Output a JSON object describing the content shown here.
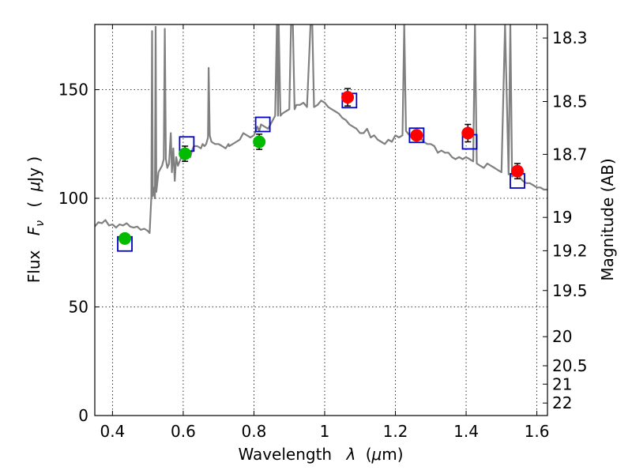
{
  "chart_data": {
    "type": "scatter",
    "xlabel_text": "Wavelength",
    "xlabel_symbol": "λ",
    "xlabel_unit_open": "(",
    "xlabel_unit_mu": "μ",
    "xlabel_unit_close": "m)",
    "ylabel_text": "Flux",
    "ylabel_symbol": "F",
    "ylabel_subscript": "ν",
    "ylabel_unit_open": "(",
    "ylabel_unit_mu": "μ",
    "ylabel_unit_close": "Jy )",
    "y2label": "Magnitude (AB)",
    "xlim": [
      0.35,
      1.63
    ],
    "ylim": [
      0,
      180
    ],
    "xticks": [
      0.4,
      0.6,
      0.8,
      1.0,
      1.2,
      1.4,
      1.6
    ],
    "xtick_labels": [
      "0.4",
      "0.6",
      "0.8",
      "1",
      "1.2",
      "1.4",
      "1.6"
    ],
    "yticks": [
      0,
      50,
      100,
      150
    ],
    "ytick_labels": [
      "0",
      "50",
      "100",
      "150"
    ],
    "y2ticks": [
      18.3,
      18.5,
      18.7,
      19,
      19.2,
      19.5,
      20,
      20.5,
      21,
      22
    ],
    "y2tick_labels": [
      "18.3",
      "18.5",
      "18.7",
      "19",
      "19.2",
      "19.5",
      "20",
      "20.5",
      "21",
      "22"
    ],
    "grid": true,
    "colors": {
      "green_points": "#00bb00",
      "red_points": "#ff0000",
      "model_squares": "#0000cc",
      "sed_line": "#808080",
      "error_bar": "#000000"
    },
    "series": [
      {
        "type": "scatter",
        "color": "#00bb00",
        "marker": "circle",
        "points": [
          {
            "x": 0.435,
            "y": 81.5,
            "err": 2.0
          },
          {
            "x": 0.605,
            "y": 120.5,
            "err": 3.5
          },
          {
            "x": 0.815,
            "y": 126.0,
            "err": 3.5
          }
        ]
      },
      {
        "type": "scatter",
        "color": "#ff0000",
        "marker": "circle",
        "points": [
          {
            "x": 1.065,
            "y": 146.5,
            "err": 4.0
          },
          {
            "x": 1.26,
            "y": 129.0,
            "err": 1.5
          },
          {
            "x": 1.405,
            "y": 130.0,
            "err": 4.0
          },
          {
            "x": 1.545,
            "y": 112.5,
            "err": 3.5
          }
        ]
      },
      {
        "type": "scatter",
        "color": "#0000cc",
        "marker": "square",
        "points": [
          {
            "x": 0.435,
            "y": 79.0
          },
          {
            "x": 0.61,
            "y": 125.0
          },
          {
            "x": 0.825,
            "y": 134.0
          },
          {
            "x": 1.07,
            "y": 145.0
          },
          {
            "x": 1.26,
            "y": 129.0
          },
          {
            "x": 1.41,
            "y": 126.0
          },
          {
            "x": 1.545,
            "y": 108.0
          }
        ]
      },
      {
        "type": "line",
        "color": "#808080",
        "points": [
          [
            0.35,
            87
          ],
          [
            0.36,
            89
          ],
          [
            0.37,
            88.5
          ],
          [
            0.38,
            90
          ],
          [
            0.39,
            87.5
          ],
          [
            0.4,
            88
          ],
          [
            0.41,
            86.5
          ],
          [
            0.42,
            88
          ],
          [
            0.43,
            87.5
          ],
          [
            0.44,
            88.5
          ],
          [
            0.45,
            87
          ],
          [
            0.46,
            86.5
          ],
          [
            0.47,
            87
          ],
          [
            0.48,
            85.5
          ],
          [
            0.49,
            86
          ],
          [
            0.5,
            85
          ],
          [
            0.505,
            84
          ],
          [
            0.51,
            101
          ],
          [
            0.512,
            177
          ],
          [
            0.514,
            101
          ],
          [
            0.518,
            105
          ],
          [
            0.52,
            100
          ],
          [
            0.522,
            179
          ],
          [
            0.524,
            103
          ],
          [
            0.53,
            112
          ],
          [
            0.54,
            115
          ],
          [
            0.545,
            118
          ],
          [
            0.548,
            178
          ],
          [
            0.551,
            118
          ],
          [
            0.555,
            114
          ],
          [
            0.56,
            116
          ],
          [
            0.565,
            130
          ],
          [
            0.568,
            112
          ],
          [
            0.572,
            123
          ],
          [
            0.576,
            108
          ],
          [
            0.58,
            119
          ],
          [
            0.585,
            115
          ],
          [
            0.59,
            117
          ],
          [
            0.6,
            121
          ],
          [
            0.61,
            120
          ],
          [
            0.62,
            119
          ],
          [
            0.625,
            122
          ],
          [
            0.63,
            124
          ],
          [
            0.64,
            124
          ],
          [
            0.65,
            123
          ],
          [
            0.655,
            125
          ],
          [
            0.66,
            124
          ],
          [
            0.665,
            125
          ],
          [
            0.67,
            128
          ],
          [
            0.672,
            160
          ],
          [
            0.675,
            129
          ],
          [
            0.68,
            126
          ],
          [
            0.69,
            125
          ],
          [
            0.7,
            125
          ],
          [
            0.71,
            124
          ],
          [
            0.72,
            123
          ],
          [
            0.728,
            125
          ],
          [
            0.73,
            124
          ],
          [
            0.74,
            125
          ],
          [
            0.75,
            126
          ],
          [
            0.76,
            127
          ],
          [
            0.77,
            130
          ],
          [
            0.78,
            129
          ],
          [
            0.79,
            128
          ],
          [
            0.8,
            129
          ],
          [
            0.81,
            133
          ],
          [
            0.815,
            131
          ],
          [
            0.82,
            134
          ],
          [
            0.83,
            133
          ],
          [
            0.84,
            132
          ],
          [
            0.85,
            135
          ],
          [
            0.86,
            138
          ],
          [
            0.865,
            180
          ],
          [
            0.868,
            138
          ],
          [
            0.87,
            180
          ],
          [
            0.875,
            138
          ],
          [
            0.88,
            139
          ],
          [
            0.89,
            140
          ],
          [
            0.9,
            141
          ],
          [
            0.905,
            180
          ],
          [
            0.91,
            180
          ],
          [
            0.915,
            141
          ],
          [
            0.92,
            143
          ],
          [
            0.93,
            143
          ],
          [
            0.94,
            144
          ],
          [
            0.95,
            142
          ],
          [
            0.96,
            180
          ],
          [
            0.965,
            180
          ],
          [
            0.97,
            142
          ],
          [
            0.98,
            143
          ],
          [
            0.99,
            145
          ],
          [
            1.0,
            144
          ],
          [
            1.01,
            142
          ],
          [
            1.02,
            141
          ],
          [
            1.03,
            140
          ],
          [
            1.04,
            139
          ],
          [
            1.05,
            137
          ],
          [
            1.06,
            136
          ],
          [
            1.07,
            134
          ],
          [
            1.08,
            133
          ],
          [
            1.09,
            132
          ],
          [
            1.1,
            130
          ],
          [
            1.11,
            130
          ],
          [
            1.12,
            132
          ],
          [
            1.13,
            128
          ],
          [
            1.14,
            129
          ],
          [
            1.15,
            127
          ],
          [
            1.16,
            126
          ],
          [
            1.17,
            125
          ],
          [
            1.18,
            127
          ],
          [
            1.19,
            126
          ],
          [
            1.2,
            129
          ],
          [
            1.21,
            128
          ],
          [
            1.22,
            129
          ],
          [
            1.225,
            180
          ],
          [
            1.23,
            131
          ],
          [
            1.24,
            129
          ],
          [
            1.25,
            127
          ],
          [
            1.26,
            129
          ],
          [
            1.27,
            128
          ],
          [
            1.28,
            126
          ],
          [
            1.29,
            125
          ],
          [
            1.3,
            125
          ],
          [
            1.31,
            124
          ],
          [
            1.32,
            121
          ],
          [
            1.33,
            122
          ],
          [
            1.34,
            121
          ],
          [
            1.35,
            121
          ],
          [
            1.36,
            119
          ],
          [
            1.37,
            118
          ],
          [
            1.38,
            119
          ],
          [
            1.39,
            118
          ],
          [
            1.4,
            119
          ],
          [
            1.41,
            118
          ],
          [
            1.42,
            117
          ],
          [
            1.425,
            180
          ],
          [
            1.43,
            116
          ],
          [
            1.44,
            115
          ],
          [
            1.45,
            114
          ],
          [
            1.46,
            116
          ],
          [
            1.47,
            115
          ],
          [
            1.48,
            114
          ],
          [
            1.49,
            113
          ],
          [
            1.5,
            112
          ],
          [
            1.51,
            180
          ],
          [
            1.52,
            111
          ],
          [
            1.525,
            180
          ],
          [
            1.53,
            110
          ],
          [
            1.54,
            111
          ],
          [
            1.55,
            110
          ],
          [
            1.56,
            108
          ],
          [
            1.57,
            107
          ],
          [
            1.58,
            107
          ],
          [
            1.59,
            106
          ],
          [
            1.6,
            105
          ],
          [
            1.61,
            105
          ],
          [
            1.62,
            104
          ],
          [
            1.63,
            104
          ]
        ]
      }
    ]
  }
}
